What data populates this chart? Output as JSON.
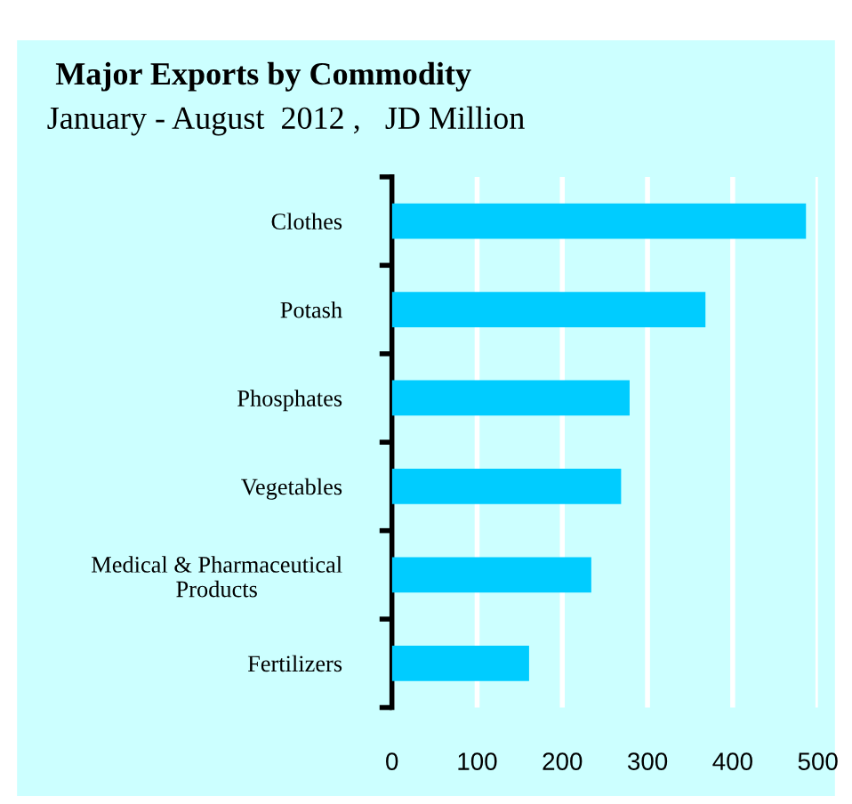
{
  "chart_data": {
    "type": "bar",
    "orientation": "horizontal",
    "title": "Major Exports by Commodity",
    "subtitle": "January - August  2012 ,   JD Million",
    "categories": [
      "Clothes",
      "Potash",
      "Phosphates",
      "Vegetables",
      "Medical & Pharmaceutical\nProducts",
      "Fertilizers"
    ],
    "values": [
      486,
      368,
      279,
      269,
      234,
      161
    ],
    "color": "#00ccff",
    "xlim": [
      0,
      500
    ],
    "xticks": [
      0,
      100,
      200,
      300,
      400,
      500
    ],
    "grid": "x"
  }
}
